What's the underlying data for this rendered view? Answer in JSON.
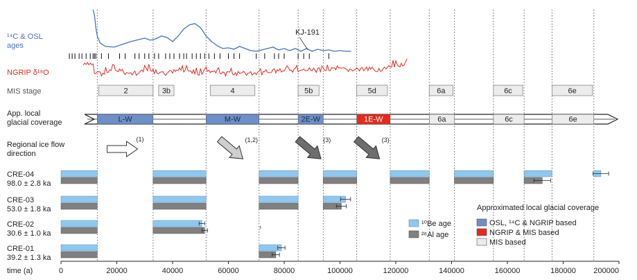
{
  "colors": {
    "c14": "#4472c4",
    "ngrip": "#e8291c",
    "be_bar": "#8ec8f0",
    "al_bar": "#808080",
    "glacial_osl": "#6f8fc9",
    "glacial_ngrip": "#e8291c",
    "glacial_mis": "#ececec",
    "mis_box": "#ececec",
    "text_gray": "#555555"
  },
  "row_labels": {
    "c14_osl": "¹⁴C & OSL\nages",
    "ngrip": "NGRIP δ¹⁸O",
    "mis": "MIS stage",
    "coverage": "App. local\nglacial coverage",
    "flow": "Regional ice flow\ndirection"
  },
  "kj_label": "KJ-191",
  "x_axis": {
    "label": "time (a)",
    "min": 0,
    "max": 200000,
    "ticks": [
      0,
      20000,
      40000,
      60000,
      80000,
      100000,
      120000,
      140000,
      160000,
      180000,
      200000
    ],
    "tick_labels": [
      "0",
      "20000",
      "40000",
      "60000",
      "80000",
      "100000",
      "120000",
      "140000",
      "160000",
      "180000",
      "200000"
    ]
  },
  "boundaries": [
    13000,
    33000,
    52000,
    71000,
    85000,
    94000,
    106000,
    118000,
    132000,
    141000,
    155000,
    166000,
    176000,
    191000
  ],
  "mis_stages": [
    {
      "label": "2",
      "start": 13500,
      "end": 33000
    },
    {
      "label": "3b",
      "start": 35000,
      "end": 40500
    },
    {
      "label": "4",
      "start": 53500,
      "end": 69500
    },
    {
      "label": "5b",
      "start": 85000,
      "end": 92500
    },
    {
      "label": "5d",
      "start": 106000,
      "end": 117000
    },
    {
      "label": "6a",
      "start": 132000,
      "end": 140500
    },
    {
      "label": "6c",
      "start": 155000,
      "end": 165500
    },
    {
      "label": "6e",
      "start": 176000,
      "end": 190500
    }
  ],
  "coverage": [
    {
      "label": "L-W",
      "start": 13000,
      "end": 33000,
      "type": "osl"
    },
    {
      "label": "M-W",
      "start": 52000,
      "end": 71000,
      "type": "osl"
    },
    {
      "label": "2E-W",
      "start": 85000,
      "end": 94000,
      "type": "osl"
    },
    {
      "label": "1E-W",
      "start": 106000,
      "end": 118000,
      "type": "ngrip"
    },
    {
      "label": "6a",
      "start": 132000,
      "end": 141000,
      "type": "mis"
    },
    {
      "label": "6c",
      "start": 155000,
      "end": 166000,
      "type": "mis"
    },
    {
      "label": "6e",
      "start": 176000,
      "end": 191000,
      "type": "mis"
    }
  ],
  "flow_arrows": [
    {
      "at": 22000,
      "direction": "east",
      "style": "white",
      "ref": "(1)"
    },
    {
      "at": 61000,
      "direction": "southeast",
      "style": "lightgray",
      "ref": "(1,2)"
    },
    {
      "at": 89000,
      "direction": "southeast",
      "style": "darkgray",
      "ref": "(3)"
    },
    {
      "at": 110000,
      "direction": "southeast",
      "style": "darkgray",
      "ref": "(3)"
    }
  ],
  "chart_data": {
    "type": "bar",
    "xlabel": "time (a)",
    "xlim": [
      0,
      200000
    ],
    "c14_osl_age_ticks": [
      3000,
      4000,
      5000,
      6500,
      7500,
      9000,
      10500,
      11500,
      12000,
      12500,
      14500,
      17000,
      21000,
      23000,
      26500,
      28000,
      30000,
      31500,
      33500,
      35000,
      37500,
      39000,
      40500,
      42500,
      44000,
      45000,
      47000,
      48500,
      50000,
      51500,
      53000,
      55000,
      57000,
      60000,
      62000,
      64000,
      70000,
      73000,
      76500,
      78000,
      80000,
      85000,
      87000,
      89000,
      96000
    ],
    "samples": [
      {
        "name": "CRE-04",
        "age": "98.0 ± 2.8 ka",
        "be_intervals": [
          [
            0,
            13000
          ],
          [
            33000,
            52000
          ],
          [
            71000,
            85000
          ],
          [
            94000,
            106000
          ],
          [
            118000,
            132000
          ],
          [
            141000,
            155000
          ],
          [
            166000,
            176000
          ]
        ],
        "al_intervals": [
          [
            0,
            13000
          ],
          [
            33000,
            52000
          ],
          [
            71000,
            85000
          ],
          [
            94000,
            106000
          ],
          [
            118000,
            132000
          ],
          [
            141000,
            155000
          ],
          [
            166000,
            172500
          ]
        ],
        "be_isolated": [
          [
            191000,
            193500
          ]
        ],
        "be_error": [
          193500,
          2800
        ],
        "al_error": [
          172500,
          3000
        ]
      },
      {
        "name": "CRE-03",
        "age": "53.0 ± 1.8 ka",
        "be_intervals": [
          [
            0,
            13000
          ],
          [
            33000,
            52000
          ],
          [
            71000,
            85000
          ],
          [
            94000,
            102000
          ]
        ],
        "al_intervals": [
          [
            0,
            13000
          ],
          [
            33000,
            52000
          ],
          [
            71000,
            85000
          ],
          [
            94000,
            100500
          ]
        ],
        "be_isolated": [],
        "be_error": [
          102000,
          1800
        ],
        "al_error": [
          100500,
          1800
        ]
      },
      {
        "name": "CRE-02",
        "age": "30.6 ± 1.0 ka",
        "be_intervals": [
          [
            0,
            13000
          ],
          [
            33000,
            50500
          ]
        ],
        "al_intervals": [
          [
            0,
            13000
          ],
          [
            33000,
            51500
          ]
        ],
        "be_isolated": [],
        "be_error": [
          50500,
          1000
        ],
        "al_error": [
          51500,
          1000
        ],
        "stray_mark": 71500
      },
      {
        "name": "CRE-01",
        "age": "39.2 ± 1.3 ka",
        "be_intervals": [
          [
            0,
            13000
          ],
          [
            71000,
            79000
          ]
        ],
        "al_intervals": [
          [
            0,
            13000
          ],
          [
            71000,
            77000
          ]
        ],
        "be_isolated": [],
        "be_error": [
          79000,
          1300
        ],
        "al_error": [
          77000,
          1300
        ]
      }
    ]
  },
  "legend": {
    "be_label": "¹⁰Be age",
    "al_label": "²⁶Al age",
    "coverage_title": "Approximated local glacial coverage",
    "coverage_items": [
      {
        "label": "OSL, ¹⁴C & NGRIP based",
        "type": "osl"
      },
      {
        "label": "NGRIP & MIS based",
        "type": "ngrip"
      },
      {
        "label": "MIS based",
        "type": "mis"
      }
    ]
  }
}
